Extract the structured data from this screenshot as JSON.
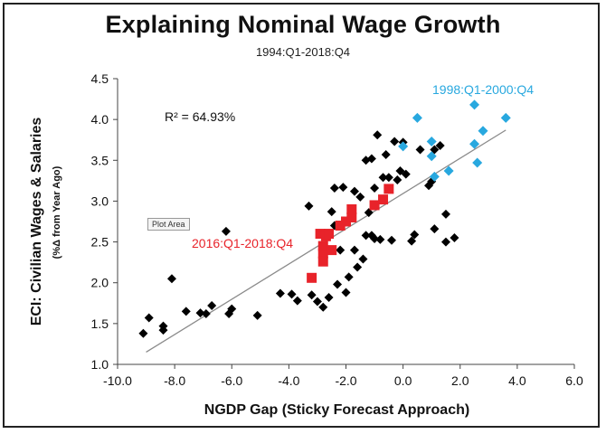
{
  "chart_data": {
    "type": "scatter",
    "title": "Explaining Nominal Wage Growth",
    "subtitle": "1994:Q1-2018:Q4",
    "xlabel": "NGDP Gap (Sticky Forecast Approach)",
    "ylabel": "ECI: Civilian Wages & Salaries",
    "ylabel_sub": "(%Δ from Year Ago)",
    "xlim": [
      -10,
      6
    ],
    "ylim": [
      1.0,
      4.5
    ],
    "xticks": [
      "-10.0",
      "-8.0",
      "-6.0",
      "-4.0",
      "-2.0",
      "0.0",
      "2.0",
      "4.0",
      "6.0"
    ],
    "yticks": [
      "1.0",
      "1.5",
      "2.0",
      "2.5",
      "3.0",
      "3.5",
      "4.0",
      "4.5"
    ],
    "grid": false,
    "r_squared_label": "R² = 64.93%",
    "tooltip_label": "Plot Area",
    "trendline": {
      "x": [
        -9.0,
        3.6
      ],
      "y": [
        1.15,
        3.87
      ]
    },
    "series": [
      {
        "color": "#000000",
        "points": [
          [
            -9.1,
            1.38
          ],
          [
            -8.9,
            1.57
          ],
          [
            -8.4,
            1.42
          ],
          [
            -8.4,
            1.47
          ],
          [
            -8.1,
            2.05
          ],
          [
            -7.6,
            1.65
          ],
          [
            -7.1,
            1.63
          ],
          [
            -6.9,
            1.62
          ],
          [
            -6.7,
            1.72
          ],
          [
            -6.2,
            2.63
          ],
          [
            -6.1,
            1.62
          ],
          [
            -6.0,
            1.68
          ],
          [
            -5.1,
            1.6
          ],
          [
            -4.3,
            1.87
          ],
          [
            -3.9,
            1.86
          ],
          [
            -3.7,
            1.78
          ],
          [
            -3.3,
            2.94
          ],
          [
            -3.2,
            1.85
          ],
          [
            -3.0,
            1.77
          ],
          [
            -2.8,
            1.7
          ],
          [
            -2.6,
            1.82
          ],
          [
            -2.5,
            2.87
          ],
          [
            -2.4,
            2.7
          ],
          [
            -2.4,
            3.16
          ],
          [
            -2.3,
            1.98
          ],
          [
            -2.2,
            2.4
          ],
          [
            -2.1,
            3.17
          ],
          [
            -2.0,
            1.88
          ],
          [
            -1.9,
            2.07
          ],
          [
            -1.8,
            2.83
          ],
          [
            -1.7,
            2.4
          ],
          [
            -1.7,
            3.12
          ],
          [
            -1.6,
            2.19
          ],
          [
            -1.5,
            3.05
          ],
          [
            -1.4,
            2.29
          ],
          [
            -1.3,
            3.5
          ],
          [
            -1.3,
            2.58
          ],
          [
            -1.2,
            2.86
          ],
          [
            -1.1,
            3.52
          ],
          [
            -1.1,
            2.58
          ],
          [
            -1.0,
            3.16
          ],
          [
            -1.0,
            2.54
          ],
          [
            -0.9,
            3.81
          ],
          [
            -0.8,
            2.53
          ],
          [
            -0.7,
            3.29
          ],
          [
            -0.6,
            3.57
          ],
          [
            -0.5,
            3.29
          ],
          [
            -0.4,
            2.52
          ],
          [
            -0.3,
            3.73
          ],
          [
            -0.2,
            3.26
          ],
          [
            -0.1,
            3.37
          ],
          [
            0.0,
            3.72
          ],
          [
            0.1,
            3.33
          ],
          [
            0.3,
            2.51
          ],
          [
            0.4,
            2.59
          ],
          [
            0.6,
            3.63
          ],
          [
            0.9,
            3.19
          ],
          [
            1.0,
            3.24
          ],
          [
            1.1,
            2.66
          ],
          [
            1.1,
            3.63
          ],
          [
            1.3,
            3.68
          ],
          [
            1.5,
            2.84
          ],
          [
            1.5,
            2.5
          ],
          [
            1.8,
            2.55
          ]
        ]
      },
      {
        "name": "2016:Q1-2018:Q4",
        "color": "#e8232a",
        "points": [
          [
            -3.2,
            2.06
          ],
          [
            -2.9,
            2.6
          ],
          [
            -2.8,
            2.36
          ],
          [
            -2.8,
            2.45
          ],
          [
            -2.7,
            2.57
          ],
          [
            -2.6,
            2.6
          ],
          [
            -2.5,
            2.4
          ],
          [
            -2.2,
            2.7
          ],
          [
            -2.0,
            2.75
          ],
          [
            -1.8,
            2.9
          ],
          [
            -1.8,
            2.8
          ],
          [
            -1.0,
            2.95
          ],
          [
            -0.7,
            3.02
          ],
          [
            -0.5,
            3.15
          ],
          [
            -2.8,
            2.26
          ]
        ]
      },
      {
        "name": "1998:Q1-2000:Q4",
        "color": "#28a8df",
        "points": [
          [
            0.0,
            3.67
          ],
          [
            0.5,
            4.02
          ],
          [
            1.0,
            3.73
          ],
          [
            1.0,
            3.55
          ],
          [
            1.1,
            3.3
          ],
          [
            1.6,
            3.37
          ],
          [
            2.5,
            4.18
          ],
          [
            2.5,
            3.7
          ],
          [
            2.6,
            3.47
          ],
          [
            2.8,
            3.86
          ],
          [
            3.6,
            4.02
          ]
        ]
      }
    ],
    "annotations": [
      {
        "text": "1998:Q1-2000:Q4",
        "color": "#28a8df",
        "series": 2
      },
      {
        "text": "2016:Q1-2018:Q4",
        "color": "#e8232a",
        "series": 1
      }
    ]
  }
}
